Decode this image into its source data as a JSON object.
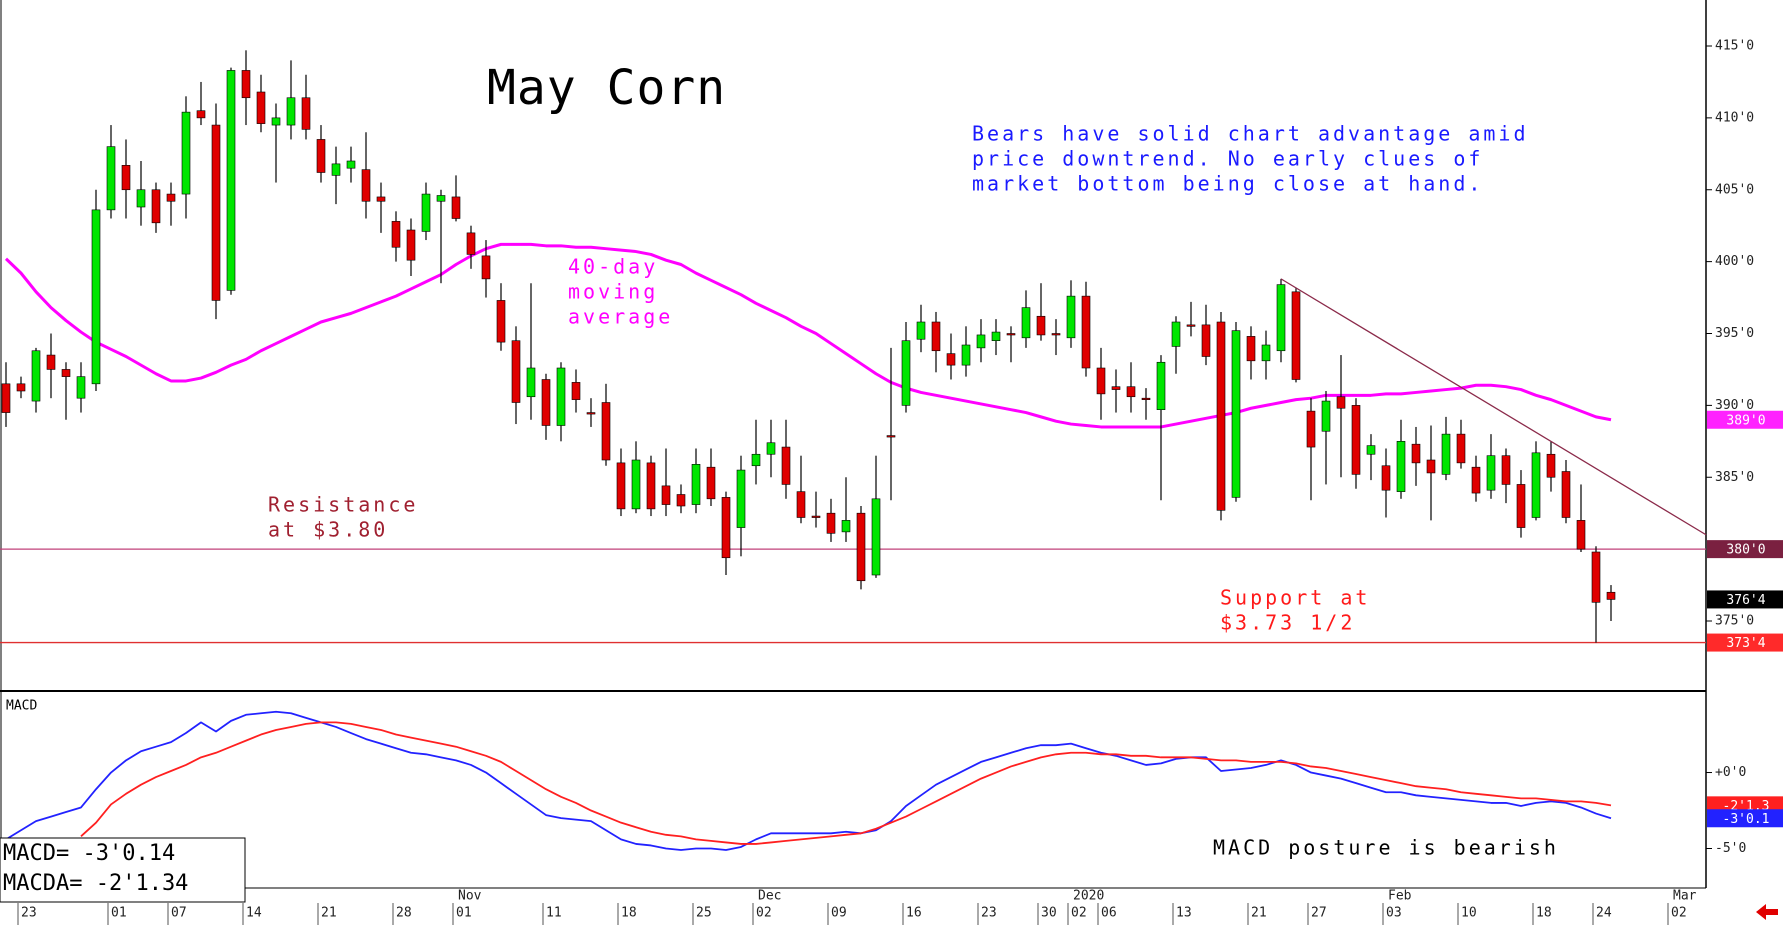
{
  "chart_data": [
    {
      "type": "candlestick",
      "title": "May Corn",
      "categories": [
        null,
        "23",
        null,
        null,
        null,
        null,
        null,
        "01",
        null,
        null,
        null,
        "07",
        null,
        null,
        null,
        null,
        "14",
        null,
        null,
        null,
        null,
        "21",
        null,
        null,
        null,
        null,
        "28",
        null,
        null,
        null,
        "01",
        null,
        null,
        null,
        null,
        null,
        "11",
        null,
        null,
        null,
        null,
        "18",
        null,
        null,
        null,
        null,
        "25",
        null,
        null,
        null,
        "02",
        null,
        null,
        null,
        null,
        "09",
        null,
        null,
        null,
        null,
        "16",
        null,
        null,
        null,
        null,
        "23",
        null,
        null,
        null,
        "30",
        null,
        "02",
        null,
        "06",
        null,
        null,
        null,
        null,
        "13",
        null,
        null,
        null,
        null,
        "21",
        null,
        null,
        null,
        "27",
        null,
        null,
        null,
        null,
        "03",
        null,
        null,
        null,
        null,
        "10",
        null,
        null,
        null,
        null,
        "18",
        null,
        null,
        null,
        "24",
        null,
        null,
        null,
        null,
        "02"
      ],
      "months": [
        null,
        null,
        null,
        null,
        null,
        null,
        null,
        null,
        null,
        null,
        null,
        null,
        null,
        null,
        null,
        null,
        null,
        null,
        null,
        null,
        null,
        null,
        null,
        null,
        null,
        null,
        null,
        null,
        null,
        null,
        "Nov",
        null,
        null,
        null,
        null,
        null,
        null,
        null,
        null,
        null,
        null,
        null,
        null,
        null,
        null,
        null,
        null,
        null,
        null,
        null,
        "Dec",
        null,
        null,
        null,
        null,
        null,
        null,
        null,
        null,
        null,
        null,
        null,
        null,
        null,
        null,
        null,
        null,
        null,
        null,
        null,
        null,
        "2020",
        null,
        null,
        null,
        null,
        null,
        null,
        null,
        null,
        null,
        null,
        null,
        null,
        null,
        null,
        null,
        null,
        null,
        null,
        null,
        null,
        "Feb",
        null,
        null,
        null,
        null,
        null,
        null,
        null,
        null,
        null,
        null,
        null,
        null,
        null,
        null,
        null,
        null,
        null,
        null,
        "Mar"
      ],
      "open": [
        391.5,
        391.5,
        390.3,
        393.5,
        392.5,
        390.5,
        391.5,
        403.6,
        406.7,
        403.8,
        405,
        404.7,
        404.7,
        410.5,
        409.5,
        398,
        413.3,
        411.8,
        409.5,
        409.5,
        411.4,
        408.5,
        406,
        406.5,
        406.4,
        404.5,
        402.8,
        402.2,
        402.1,
        404.2,
        404.5,
        402,
        400.4,
        397.3,
        394.5,
        390.6,
        391.8,
        388.6,
        391.6,
        389.5,
        390.2,
        386,
        382.8,
        386,
        384.4,
        383.8,
        383.1,
        385.7,
        383.6,
        381.5,
        385.8,
        386.6,
        387.1,
        384,
        382.3,
        382.5,
        381.2,
        382.5,
        378.2,
        387.9,
        390,
        394.6,
        395.8,
        393.6,
        392.8,
        394,
        394.5,
        395,
        394.7,
        396.2,
        395,
        394.7,
        397.6,
        392.6,
        391.3,
        391.3,
        390.5,
        389.7,
        394.1,
        395.6,
        395.6,
        395.8,
        383.6,
        394.8,
        393.1,
        393.8,
        397.9,
        389.6,
        388.2,
        390.6,
        390,
        386.6,
        385.8,
        384,
        387.3,
        386.2,
        385.2,
        388,
        385.7,
        384.1,
        386.5,
        384.5,
        382.2,
        386.6,
        385.4,
        382,
        379.8,
        377,
        null,
        null,
        null,
        null
      ],
      "high": [
        393,
        392,
        394,
        395,
        393,
        393,
        405,
        409.5,
        408.5,
        407,
        405.5,
        405.5,
        411.5,
        412.5,
        411,
        413.5,
        414.7,
        413,
        411,
        414,
        413,
        409.5,
        408,
        408,
        409,
        405.5,
        403.5,
        403,
        405.5,
        405,
        406,
        402.5,
        401.5,
        398.5,
        395.5,
        398.5,
        392.2,
        393,
        392.5,
        390.5,
        391.5,
        387,
        387.5,
        386.5,
        387,
        384.5,
        387,
        387,
        384,
        386.5,
        389,
        389,
        389,
        386.5,
        384,
        383.5,
        385,
        383,
        386.5,
        394,
        395.8,
        397,
        396.5,
        395,
        395.5,
        396,
        396,
        395.5,
        398,
        398.5,
        396,
        398.7,
        398.6,
        394,
        392.5,
        393,
        391.2,
        393.5,
        396.2,
        397.2,
        397,
        396.5,
        395.8,
        395.5,
        395.2,
        398.8,
        398.2,
        390.5,
        391,
        393.5,
        390.5,
        388,
        387,
        389,
        388.5,
        388.6,
        389.2,
        389,
        386.5,
        388,
        387,
        385.5,
        387.5,
        387.5,
        386.2,
        384.5,
        380.2,
        377.5,
        null,
        null,
        null,
        null
      ],
      "low": [
        388.5,
        390.5,
        389.5,
        390.5,
        389,
        389.5,
        391,
        403,
        403,
        402.5,
        402,
        402.5,
        403,
        409.5,
        396,
        397.7,
        409.5,
        409,
        405.5,
        408.5,
        408.5,
        405.5,
        404,
        405.5,
        403,
        402,
        400,
        399,
        401.5,
        398.5,
        402.8,
        399.5,
        397.5,
        393.8,
        388.7,
        389,
        387.6,
        387.5,
        389.5,
        388.5,
        385.8,
        382.3,
        382.5,
        382.3,
        382.3,
        382.5,
        382.5,
        383,
        378.2,
        379.5,
        384.5,
        385,
        383.5,
        381.8,
        381.5,
        380.5,
        380.5,
        377.2,
        378,
        383.4,
        389.5,
        393.7,
        392.3,
        391.8,
        392,
        393,
        393.5,
        393,
        394,
        394.5,
        393.5,
        394,
        392,
        389,
        389.5,
        389.5,
        389,
        383.4,
        392.2,
        394.8,
        392.8,
        382,
        383.3,
        391.8,
        391.8,
        393,
        391.6,
        383.4,
        384.5,
        385,
        384.2,
        384.8,
        382.2,
        383.5,
        384.4,
        382,
        384.8,
        385.6,
        383.3,
        383.5,
        383.2,
        380.8,
        382,
        384,
        381.8,
        379.8,
        373.5,
        375,
        null,
        null,
        null,
        null
      ],
      "close": [
        389.5,
        391,
        393.8,
        392.5,
        392,
        392,
        403.6,
        408,
        405,
        405,
        402.7,
        404.2,
        410.4,
        410,
        397.3,
        413.3,
        411.4,
        409.6,
        410,
        411.4,
        409.2,
        406.2,
        406.8,
        407,
        404.2,
        404.2,
        401,
        400.1,
        404.7,
        404.6,
        403,
        400.5,
        398.8,
        394.4,
        390.2,
        392.6,
        388.6,
        392.6,
        390.4,
        389.4,
        386.2,
        382.8,
        386.2,
        382.8,
        383.1,
        383,
        385.9,
        383.5,
        379.4,
        385.5,
        386.6,
        387.4,
        384.5,
        382.2,
        382.2,
        381.1,
        382,
        377.8,
        383.5,
        387.8,
        394.5,
        395.8,
        393.8,
        392.8,
        394.2,
        394.9,
        395.1,
        394.9,
        396.8,
        394.9,
        394.9,
        397.6,
        392.6,
        390.8,
        391.1,
        390.6,
        390.4,
        393,
        395.8,
        395.5,
        393.4,
        382.7,
        395.2,
        393.1,
        394.2,
        398.4,
        391.8,
        387.1,
        390.3,
        389.8,
        385.2,
        387.2,
        384.1,
        387.5,
        386,
        385.3,
        388,
        386,
        383.9,
        386.5,
        384.5,
        381.5,
        386.7,
        385,
        382.2,
        380,
        376.3,
        376.5,
        null,
        null,
        null,
        null
      ],
      "up_color": "#00e600",
      "down_color": "#e00000",
      "ylim": [
        370.2,
        418.2
      ],
      "yticks": [
        {
          "value": 375,
          "label": "375'0"
        },
        {
          "value": 385,
          "label": "385'0"
        },
        {
          "value": 390,
          "label": "390'0"
        },
        {
          "value": 395,
          "label": "395'0"
        },
        {
          "value": 400,
          "label": "400'0"
        },
        {
          "value": 405,
          "label": "405'0"
        },
        {
          "value": 410,
          "label": "410'0"
        },
        {
          "value": 415,
          "label": "415'0"
        }
      ],
      "moving_average": {
        "label": [
          "40-day",
          "moving",
          "average"
        ],
        "color": "#ff00ff",
        "values": [
          400.2,
          399.2,
          397.9,
          396.8,
          395.9,
          395.1,
          394.4,
          393.9,
          393.4,
          392.8,
          392.2,
          391.7,
          391.7,
          391.9,
          392.3,
          392.8,
          393.2,
          393.8,
          394.3,
          394.8,
          395.3,
          395.8,
          396.1,
          396.4,
          396.8,
          397.2,
          397.6,
          398.1,
          398.6,
          399.1,
          399.8,
          400.4,
          400.9,
          401.2,
          401.2,
          401.2,
          401.1,
          401.1,
          401,
          401,
          400.9,
          400.8,
          400.7,
          400.5,
          400.1,
          399.8,
          399.2,
          398.7,
          398.2,
          397.7,
          397.1,
          396.6,
          396.1,
          395.5,
          395,
          394.3,
          393.6,
          392.9,
          392.2,
          391.6,
          391.2,
          390.9,
          390.7,
          390.5,
          390.3,
          390.1,
          389.9,
          389.7,
          389.5,
          389.2,
          388.9,
          388.7,
          388.6,
          388.5,
          388.5,
          388.5,
          388.5,
          388.5,
          388.7,
          388.9,
          389.1,
          389.3,
          389.5,
          389.8,
          390,
          390.2,
          390.4,
          390.5,
          390.7,
          390.7,
          390.7,
          390.7,
          390.8,
          390.8,
          390.9,
          391,
          391.1,
          391.2,
          391.4,
          391.4,
          391.3,
          391.1,
          390.7,
          390.4,
          390,
          389.6,
          389.2,
          389,
          null,
          null,
          null,
          null
        ]
      },
      "trendline": {
        "color": "#8b2a4a",
        "values": [
          398.8,
          381
        ]
      },
      "markers": [
        {
          "value": 389,
          "label": "389'0",
          "color": "#ff22ff"
        },
        {
          "value": 380,
          "label": "380'0",
          "color": "#7a2040",
          "line": "#c0407a"
        },
        {
          "value": 376.5,
          "label": "376'4",
          "color": "#000000"
        },
        {
          "value": 373.5,
          "label": "373'4",
          "color": "#ff2a2a",
          "line": "#e03030"
        }
      ],
      "comment": [
        "Bears have solid chart advantage amid",
        "price downtrend. No early clues of",
        "market bottom being close at hand."
      ],
      "resistance_note": [
        "Resistance",
        "at $3.80"
      ],
      "support_note": [
        "Support at",
        "$3.73 1/2"
      ]
    },
    {
      "type": "macd",
      "title": "MACD",
      "ylim": [
        -7.6,
        5.3
      ],
      "yticks": [
        {
          "value": 0,
          "label": "+0'0"
        },
        {
          "value": -5,
          "label": "-5'0"
        }
      ],
      "series": [
        {
          "color": "#2222ff",
          "values": [
            -4.4,
            -3.8,
            -3.2,
            -2.9,
            -2.6,
            -2.3,
            -1.1,
            0,
            0.8,
            1.4,
            1.7,
            2,
            2.6,
            3.3,
            2.7,
            3.4,
            3.8,
            3.9,
            4,
            3.9,
            3.6,
            3.3,
            3,
            2.6,
            2.2,
            1.9,
            1.6,
            1.3,
            1.2,
            1,
            0.8,
            0.5,
            0,
            -0.7,
            -1.4,
            -2.1,
            -2.8,
            -3,
            -3.1,
            -3.2,
            -3.8,
            -4.4,
            -4.7,
            -4.8,
            -5,
            -5.1,
            -5,
            -5,
            -5.1,
            -4.9,
            -4.4,
            -4,
            -4,
            -4,
            -4,
            -4,
            -3.9,
            -4,
            -3.8,
            -3.2,
            -2.2,
            -1.5,
            -0.8,
            -0.3,
            0.2,
            0.7,
            1,
            1.3,
            1.6,
            1.8,
            1.8,
            1.9,
            1.6,
            1.3,
            1.1,
            0.8,
            0.5,
            0.6,
            0.9,
            1,
            1,
            0.1,
            0.2,
            0.3,
            0.5,
            0.8,
            0.5,
            0,
            -0.2,
            -0.4,
            -0.7,
            -1,
            -1.3,
            -1.3,
            -1.5,
            -1.6,
            -1.7,
            -1.8,
            -1.9,
            -2,
            -2,
            -2.2,
            -2,
            -1.9,
            -2,
            -2.3,
            -2.7,
            -3.01,
            null,
            null,
            null,
            null
          ]
        },
        {
          "color": "#ff2020",
          "values": [
            null,
            null,
            null,
            null,
            null,
            -4.2,
            -3.3,
            -2.1,
            -1.4,
            -0.8,
            -0.3,
            0.1,
            0.5,
            1,
            1.3,
            1.7,
            2.1,
            2.5,
            2.8,
            3,
            3.2,
            3.3,
            3.3,
            3.2,
            3,
            2.8,
            2.5,
            2.3,
            2.1,
            1.9,
            1.7,
            1.4,
            1.1,
            0.7,
            0.1,
            -0.5,
            -1.1,
            -1.6,
            -2,
            -2.5,
            -2.9,
            -3.3,
            -3.6,
            -3.9,
            -4.1,
            -4.2,
            -4.4,
            -4.5,
            -4.6,
            -4.7,
            -4.7,
            -4.6,
            -4.5,
            -4.4,
            -4.3,
            -4.2,
            -4.1,
            -4,
            -3.7,
            -3.3,
            -2.9,
            -2.4,
            -1.9,
            -1.4,
            -0.9,
            -0.4,
            0,
            0.4,
            0.7,
            1,
            1.2,
            1.3,
            1.3,
            1.2,
            1.2,
            1.1,
            1.1,
            1,
            1,
            1,
            0.9,
            0.8,
            0.8,
            0.7,
            0.7,
            0.7,
            0.6,
            0.4,
            0.3,
            0.1,
            -0.1,
            -0.3,
            -0.5,
            -0.7,
            -0.9,
            -1,
            -1.1,
            -1.3,
            -1.4,
            -1.5,
            -1.6,
            -1.7,
            -1.7,
            -1.8,
            -1.9,
            -1.9,
            -2,
            -2.16,
            null,
            null,
            null,
            null
          ]
        }
      ],
      "markers": [
        {
          "value": -2.16,
          "label": "-2'1.3",
          "color": "#ff2020"
        },
        {
          "value": -3.01,
          "label": "-3'0.1",
          "color": "#2222ff"
        }
      ],
      "readout": [
        "MACD=   -3'0.14",
        "MACDA=  -2'1.34"
      ],
      "note": "MACD posture is bearish"
    }
  ]
}
